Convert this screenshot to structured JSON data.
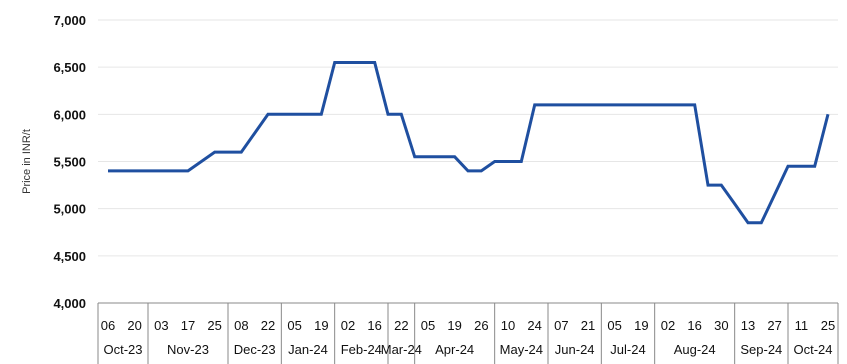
{
  "chart_data": {
    "type": "line",
    "ylabel": "Price in INR/t",
    "ylim": [
      4000,
      7000
    ],
    "yticks": [
      "4,000",
      "4,500",
      "5,000",
      "5,500",
      "6,000",
      "6,500",
      "7,000"
    ],
    "grid": true,
    "color": "#1f4fa0",
    "x_day_labels": [
      "06",
      "20",
      "03",
      "17",
      "25",
      "08",
      "22",
      "05",
      "19",
      "02",
      "16",
      "22",
      "05",
      "19",
      "26",
      "10",
      "24",
      "07",
      "21",
      "05",
      "19",
      "02",
      "16",
      "30",
      "13",
      "27",
      "11",
      "25"
    ],
    "months": [
      {
        "label": "Oct-23",
        "ticks": 2
      },
      {
        "label": "Nov-23",
        "ticks": 3
      },
      {
        "label": "Dec-23",
        "ticks": 2
      },
      {
        "label": "Jan-24",
        "ticks": 2
      },
      {
        "label": "Feb-24",
        "ticks": 2
      },
      {
        "label": "Mar-24",
        "ticks": 1
      },
      {
        "label": "Apr-24",
        "ticks": 3
      },
      {
        "label": "May-24",
        "ticks": 2
      },
      {
        "label": "Jun-24",
        "ticks": 2
      },
      {
        "label": "Jul-24",
        "ticks": 2
      },
      {
        "label": "Aug-24",
        "ticks": 3
      },
      {
        "label": "Sep-24",
        "ticks": 2
      },
      {
        "label": "Oct-24",
        "ticks": 2
      }
    ],
    "series": [
      {
        "x": [
          "06",
          "20",
          "03",
          "17",
          "25",
          "08",
          "22",
          "05",
          "19",
          "02",
          "16",
          "22",
          "05",
          "19",
          "26",
          "10",
          "24",
          "07",
          "21",
          "05",
          "19",
          "02",
          "16",
          "30",
          "13",
          "27",
          "11",
          "25"
        ],
        "values": [
          5400,
          5400,
          5400,
          5400,
          5600,
          5600,
          6000,
          6000,
          6000,
          6550,
          6550,
          6000,
          5550,
          5550,
          5400,
          5500,
          6100,
          6100,
          6100,
          6100,
          6100,
          6100,
          6100,
          5250,
          4850,
          5150,
          5450,
          6000
        ],
        "values_intermediate": [
          {
            "after_index": 4,
            "value": 5600
          },
          {
            "after_index": 6,
            "value": 6000
          },
          {
            "after_index": 8,
            "value": 6550
          },
          {
            "after_index": 10,
            "value": 6000
          },
          {
            "after_index": 11,
            "value": 5550
          },
          {
            "after_index": 13,
            "value": 5400
          },
          {
            "after_index": 14,
            "value": 5500
          },
          {
            "after_index": 15,
            "value": 5500
          },
          {
            "after_index": 16,
            "value": 6100
          },
          {
            "after_index": 22,
            "value": 5250
          },
          {
            "after_index": 23,
            "value": 5050
          },
          {
            "after_index": 24,
            "value": 4850
          },
          {
            "after_index": 25,
            "value": 5450
          },
          {
            "after_index": 26,
            "value": 5450
          }
        ]
      }
    ]
  }
}
